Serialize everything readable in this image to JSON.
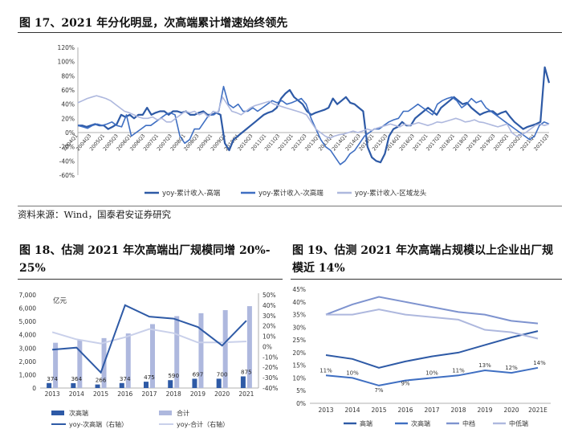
{
  "figures": {
    "fig17": {
      "title": "图 17、2021 年分化明显，次高端累计增速始终领先"
    },
    "fig18": {
      "title_line1": "图 18、估测 2021 年次高端出厂规模同增 20%-",
      "title_line2": "25%"
    },
    "fig19": {
      "title_line1": "图 19、估测 2021 年次高端占规模以上企业出厂规",
      "title_line2": "模近 14%"
    }
  },
  "source": "资料来源：Wind，国泰君安证券研究",
  "chart_data": [
    {
      "id": "fig17",
      "type": "line",
      "ylim": [
        -60,
        120
      ],
      "yticks": [
        "120%",
        "100%",
        "80%",
        "60%",
        "40%",
        "20%",
        "0%",
        "-20%",
        "-40%",
        "-60%"
      ],
      "ytick_values": [
        120,
        100,
        80,
        60,
        40,
        20,
        0,
        -20,
        -40,
        -60
      ],
      "xticks": [
        "2004Q1",
        "2004Q3",
        "2005Q1",
        "2005Q3",
        "2006Q1",
        "2006Q3",
        "2007Q1",
        "2007Q3",
        "2008Q1",
        "2008Q3",
        "2009Q1",
        "2009Q3",
        "2010Q1",
        "2010Q3",
        "2011Q1",
        "2011Q3",
        "2012Q1",
        "2012Q3",
        "2013Q1",
        "2013Q3",
        "2014Q1",
        "2014Q3",
        "2015Q1",
        "2015Q3",
        "2016Q1",
        "2016Q3",
        "2017Q1",
        "2017Q3",
        "2018Q1",
        "2018Q3",
        "2019Q1",
        "2019Q3",
        "2020Q1",
        "2020Q3",
        "2021Q1",
        "2021Q3"
      ],
      "x_start": 2004.0,
      "x_step": 0.25,
      "series": [
        {
          "name": "yoy-累计收入-高端",
          "color": "#2e5aa6",
          "width": 2.2,
          "values": [
            10,
            10,
            8,
            10,
            12,
            10,
            10,
            5,
            8,
            12,
            25,
            22,
            25,
            20,
            25,
            25,
            35,
            25,
            28,
            30,
            30,
            25,
            30,
            30,
            28,
            30,
            25,
            25,
            28,
            30,
            25,
            25,
            28,
            25,
            -15,
            -25,
            -10,
            -5,
            0,
            5,
            10,
            15,
            20,
            25,
            28,
            30,
            35,
            48,
            55,
            60,
            50,
            45,
            40,
            30,
            25,
            28,
            30,
            32,
            35,
            48,
            40,
            45,
            50,
            42,
            40,
            35,
            30,
            -20,
            -35,
            -40,
            -42,
            -30,
            -5,
            5,
            8,
            15,
            10,
            10,
            20,
            25,
            30,
            35,
            30,
            25,
            35,
            40,
            45,
            50,
            45,
            40,
            42,
            35,
            30,
            25,
            28,
            30,
            30,
            25,
            28,
            30,
            22,
            15,
            10,
            5,
            8,
            10,
            12,
            15,
            92,
            70
          ]
        },
        {
          "name": "yoy-累计收入-次高端",
          "color": "#3f6fc2",
          "width": 1.6,
          "values": [
            10,
            8,
            6,
            10,
            12,
            10,
            12,
            15,
            10,
            8,
            25,
            -5,
            0,
            5,
            10,
            10,
            15,
            20,
            25,
            28,
            25,
            -5,
            -15,
            -10,
            5,
            5,
            15,
            25,
            25,
            30,
            65,
            40,
            35,
            40,
            30,
            30,
            35,
            30,
            35,
            40,
            45,
            42,
            45,
            40,
            42,
            45,
            48,
            40,
            20,
            5,
            -10,
            -20,
            -25,
            -35,
            -45,
            -40,
            -30,
            -25,
            -15,
            -5,
            0,
            5,
            5,
            10,
            15,
            18,
            20,
            30,
            30,
            35,
            40,
            35,
            30,
            25,
            40,
            45,
            48,
            50,
            45,
            35,
            40,
            48,
            42,
            45,
            35,
            30,
            25,
            20,
            15,
            10,
            5,
            0,
            -5,
            -10,
            -5,
            10,
            15,
            12
          ]
        },
        {
          "name": "yoy-累计收入-区域龙头",
          "color": "#aeb8de",
          "width": 1.6,
          "values": [
            42,
            45,
            48,
            50,
            52,
            50,
            48,
            45,
            40,
            35,
            30,
            28,
            25,
            22,
            20,
            20,
            22,
            18,
            20,
            15,
            15,
            20,
            25,
            30,
            28,
            30,
            25,
            28,
            22,
            30,
            28,
            50,
            40,
            30,
            28,
            25,
            30,
            35,
            38,
            40,
            42,
            44,
            40,
            38,
            36,
            34,
            32,
            30,
            28,
            25,
            15,
            5,
            0,
            -5,
            -8,
            -5,
            -3,
            -2,
            0,
            2,
            0,
            2,
            5,
            3,
            6,
            8,
            10,
            12,
            10,
            8,
            12,
            10,
            12,
            14,
            12,
            10,
            12,
            15,
            14,
            16,
            18,
            20,
            18,
            15,
            16,
            18,
            15,
            14,
            12,
            10,
            8,
            10,
            12,
            0,
            -5,
            -3,
            0,
            5,
            10,
            12,
            10,
            12
          ]
        }
      ]
    },
    {
      "id": "fig18",
      "type": "bar",
      "unit_label": "亿元",
      "categories": [
        "2013",
        "2014",
        "2015",
        "2016",
        "2017",
        "2018",
        "2019",
        "2020",
        "2021"
      ],
      "ylim_left": [
        0,
        7000
      ],
      "ylim_right": [
        -40,
        50
      ],
      "yticks_left": [
        "0",
        "1,000",
        "2,000",
        "3,000",
        "4,000",
        "5,000",
        "6,000",
        "7,000"
      ],
      "ytick_values_left": [
        0,
        1000,
        2000,
        3000,
        4000,
        5000,
        6000,
        7000
      ],
      "yticks_right": [
        "50%",
        "40%",
        "30%",
        "20%",
        "10%",
        "0%",
        "-10%",
        "-20%",
        "-30%",
        "-40%"
      ],
      "ytick_values_right": [
        50,
        40,
        30,
        20,
        10,
        0,
        -10,
        -20,
        -30,
        -40
      ],
      "series": [
        {
          "name": "次高端",
          "axis": "left",
          "kind": "bar",
          "color": "#2e5aa6",
          "values": [
            374,
            364,
            266,
            374,
            475,
            590,
            697,
            700,
            875
          ],
          "labels": [
            "374",
            "364",
            "266",
            "374",
            "475",
            "590",
            "697",
            "700",
            "875"
          ]
        },
        {
          "name": "合计",
          "axis": "left",
          "kind": "bar",
          "color": "#aeb8de",
          "values": [
            3400,
            3650,
            3750,
            4100,
            4800,
            5400,
            5620,
            5850,
            6150
          ]
        },
        {
          "name": "yoy-次高端（右轴）",
          "axis": "right",
          "kind": "line",
          "color": "#2e5aa6",
          "values": [
            -3,
            -1,
            -25,
            40,
            29,
            27,
            19,
            1,
            25
          ]
        },
        {
          "name": "yoy-合计（右轴）",
          "axis": "right",
          "kind": "line",
          "color": "#c9d0ea",
          "values": [
            14,
            7,
            3,
            9,
            17,
            13,
            4,
            4,
            5
          ]
        }
      ]
    },
    {
      "id": "fig19",
      "type": "line",
      "categories": [
        "2013",
        "2014",
        "2015",
        "2016",
        "2017",
        "2018",
        "2019",
        "2020",
        "2021E"
      ],
      "ylim": [
        0,
        45
      ],
      "yticks": [
        "45%",
        "40%",
        "35%",
        "30%",
        "25%",
        "20%",
        "15%",
        "10%",
        "5%",
        "0%"
      ],
      "ytick_values": [
        45,
        40,
        35,
        30,
        25,
        20,
        15,
        10,
        5,
        0
      ],
      "series": [
        {
          "name": "高端",
          "color": "#2e5aa6",
          "values": [
            19,
            17.5,
            14,
            16.5,
            18.5,
            20,
            23,
            26,
            28.5
          ]
        },
        {
          "name": "次高端",
          "color": "#3f6fc2",
          "values": [
            11,
            10,
            7,
            9,
            10,
            11,
            13,
            12,
            14
          ],
          "labels": [
            "11%",
            "10%",
            "7%",
            "9%",
            "10%",
            "11%",
            "13%",
            "12%",
            "14%"
          ]
        },
        {
          "name": "中档",
          "color": "#7e93cf",
          "values": [
            35,
            39,
            42,
            40,
            38,
            36,
            35,
            32.5,
            31.5
          ]
        },
        {
          "name": "中低端",
          "color": "#aeb8de",
          "values": [
            35,
            35,
            37,
            35,
            34,
            33,
            29,
            28,
            25.5
          ]
        }
      ]
    }
  ]
}
